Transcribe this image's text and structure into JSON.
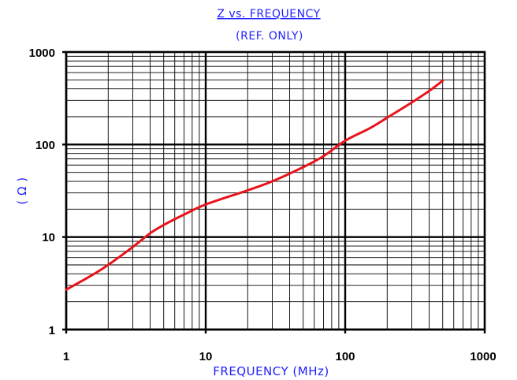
{
  "chart_data": {
    "type": "line",
    "title": "Z vs. FREQUENCY",
    "subtitle": "(REF. ONLY)",
    "xlabel": "FREQUENCY (MHz)",
    "ylabel": "( Ω )",
    "xscale": "log",
    "yscale": "log",
    "xlim": [
      1,
      1000
    ],
    "ylim": [
      1,
      1000
    ],
    "x_ticks": [
      "1",
      "10",
      "100",
      "1000"
    ],
    "y_ticks": [
      "1000",
      "100",
      "10",
      "1"
    ],
    "grid": true,
    "legend": "none",
    "series": [
      {
        "color": "#e8141c",
        "x": [
          1,
          1.5,
          2,
          3,
          4,
          5,
          7,
          10,
          20,
          30,
          50,
          70,
          100,
          150,
          200,
          300,
          400,
          500
        ],
        "y": [
          2.7,
          3.8,
          5,
          7.8,
          11,
          13.5,
          17.5,
          22.5,
          32,
          40,
          57,
          75,
          110,
          150,
          195,
          285,
          380,
          490
        ]
      }
    ]
  },
  "colors": {
    "title": "#1f1fff",
    "curve": "#e8141c",
    "grid": "#000000"
  }
}
